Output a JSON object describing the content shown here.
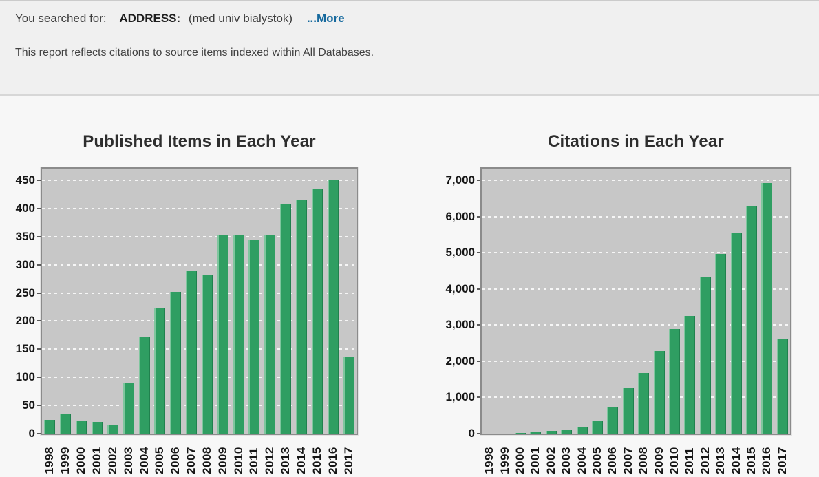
{
  "header": {
    "you_searched_for": "You searched for:",
    "field": "ADDRESS:",
    "query": "(med univ bialystok)",
    "more": "...More",
    "note": "This report reflects citations to source items indexed within All Databases."
  },
  "colors": {
    "bar": "#2f9e62",
    "bar_highlight": "#7fc69e",
    "bar_shadow": "#20814e",
    "plot_background": "#c7c7c7",
    "plot_border": "#8b8b8b",
    "link": "#176a9e"
  },
  "chart_data": [
    {
      "type": "bar",
      "title": "Published Items in Each Year",
      "xlabel": "",
      "ylabel": "",
      "categories": [
        "1998",
        "1999",
        "2000",
        "2001",
        "2002",
        "2003",
        "2004",
        "2005",
        "2006",
        "2007",
        "2008",
        "2009",
        "2010",
        "2011",
        "2012",
        "2013",
        "2014",
        "2015",
        "2016",
        "2017"
      ],
      "values": [
        24,
        34,
        22,
        21,
        16,
        89,
        172,
        223,
        252,
        290,
        281,
        354,
        354,
        345,
        354,
        407,
        415,
        435,
        450,
        137
      ],
      "ylim": [
        0,
        450
      ],
      "y_ticks": [
        0,
        50,
        100,
        150,
        200,
        250,
        300,
        350,
        400,
        450
      ],
      "y_tick_labels": [
        "0",
        "50",
        "100",
        "150",
        "200",
        "250",
        "300",
        "350",
        "400",
        "450"
      ],
      "bar_color": "#2f9e62",
      "grid": "horizontal-white-dashed",
      "legend": "none",
      "x_tick_rotation": -90
    },
    {
      "type": "bar",
      "title": "Citations in Each Year",
      "xlabel": "",
      "ylabel": "",
      "categories": [
        "1998",
        "1999",
        "2000",
        "2001",
        "2002",
        "2003",
        "2004",
        "2005",
        "2006",
        "2007",
        "2008",
        "2009",
        "2010",
        "2011",
        "2012",
        "2013",
        "2014",
        "2015",
        "2016",
        "2017"
      ],
      "values": [
        0,
        0,
        10,
        35,
        75,
        115,
        195,
        355,
        740,
        1250,
        1680,
        2290,
        2890,
        3260,
        4310,
        4970,
        5550,
        6290,
        6930,
        2620
      ],
      "ylim": [
        0,
        7000
      ],
      "y_ticks": [
        0,
        1000,
        2000,
        3000,
        4000,
        5000,
        6000,
        7000
      ],
      "y_tick_labels": [
        "0",
        "1,000",
        "2,000",
        "3,000",
        "4,000",
        "5,000",
        "6,000",
        "7,000"
      ],
      "bar_color": "#2f9e62",
      "grid": "horizontal-white-dashed",
      "legend": "none",
      "x_tick_rotation": -90
    }
  ]
}
